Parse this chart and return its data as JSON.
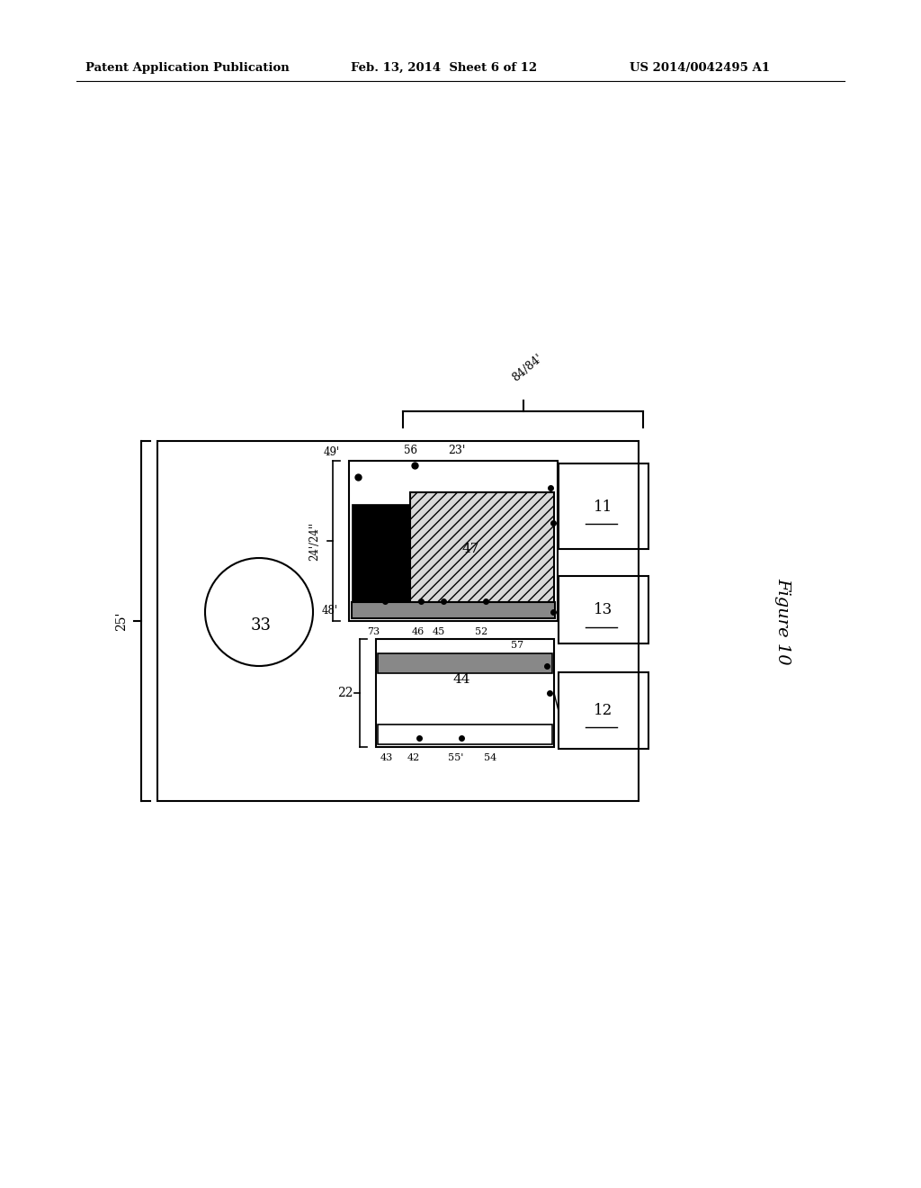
{
  "bg_color": "#ffffff",
  "header_left": "Patent Application Publication",
  "header_mid": "Feb. 13, 2014  Sheet 6 of 12",
  "header_right": "US 2014/0042495 A1",
  "figure_label": "Figure 10"
}
